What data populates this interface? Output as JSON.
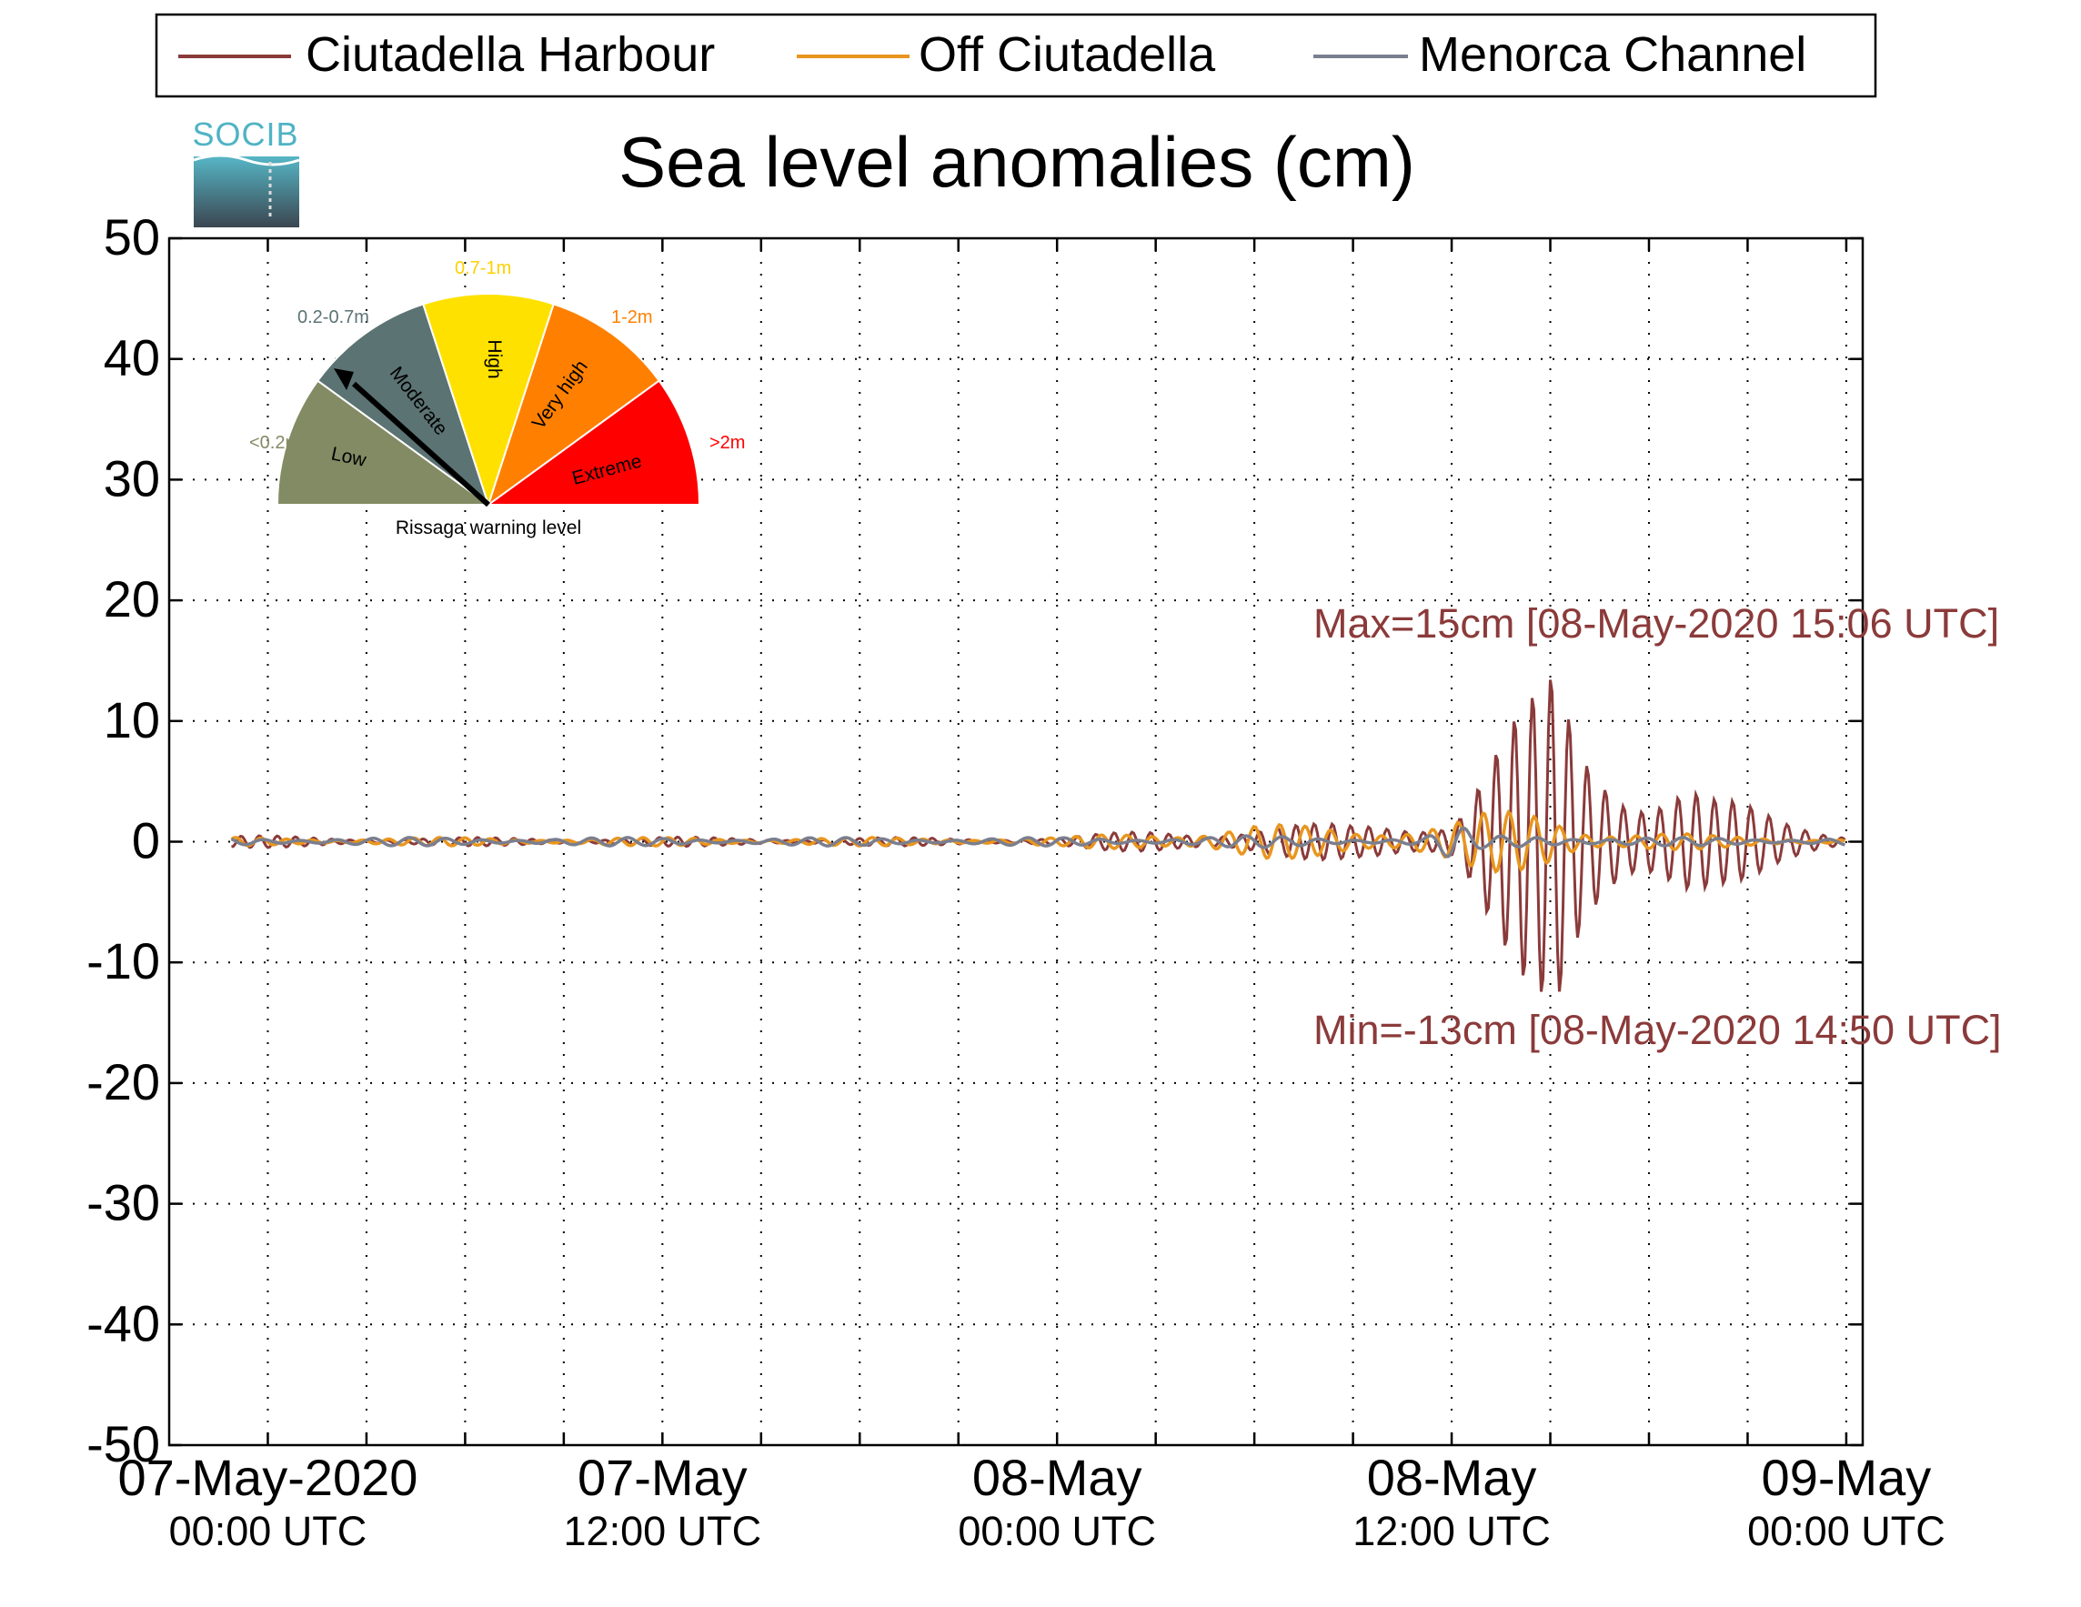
{
  "logo": {
    "text": "SOCIB"
  },
  "legend": {
    "placement": "top",
    "entries": [
      {
        "label": "Ciutadella Harbour",
        "color": "#8b3a3a"
      },
      {
        "label": "Off Ciutadella",
        "color": "#e8961e"
      },
      {
        "label": "Menorca Channel",
        "color": "#7a7f8f"
      }
    ]
  },
  "gauge": {
    "caption": "Rissaga warning level",
    "segments": [
      {
        "name": "Low",
        "range": "<0.2m",
        "color": "#838b64"
      },
      {
        "name": "Moderate",
        "range": "0.2-0.7m",
        "color": "#5c7373"
      },
      {
        "name": "High",
        "range": "0.7-1m",
        "color": "#ffe100"
      },
      {
        "name": "Very high",
        "range": "1-2m",
        "color": "#ff8000"
      },
      {
        "name": "Extreme",
        "range": ">2m",
        "color": "#ff0000"
      }
    ],
    "indicator_level": "Moderate"
  },
  "chart_data": {
    "type": "line",
    "title": "Sea level anomalies (cm)",
    "xlabel": "",
    "ylabel": "",
    "ylim": [
      -50,
      50
    ],
    "yticks": [
      50,
      40,
      30,
      20,
      10,
      0,
      -10,
      -20,
      -30,
      -40,
      -50
    ],
    "xlim": [
      "2020-05-06T21:00",
      "2020-05-09T00:30"
    ],
    "grid": true,
    "xticks": [
      {
        "t": "2020-05-07T00:00",
        "line1": "07-May-2020",
        "line2": "00:00 UTC"
      },
      {
        "t": "2020-05-07T12:00",
        "line1": "07-May",
        "line2": "12:00 UTC"
      },
      {
        "t": "2020-05-08T00:00",
        "line1": "08-May",
        "line2": "00:00 UTC"
      },
      {
        "t": "2020-05-08T12:00",
        "line1": "08-May",
        "line2": "12:00 UTC"
      },
      {
        "t": "2020-05-09T00:00",
        "line1": "09-May",
        "line2": "00:00 UTC"
      }
    ],
    "series": [
      {
        "name": "Ciutadella Harbour",
        "color": "#8b3a3a",
        "x": [
          "2020-05-07T00:00",
          "2020-05-07T06:00",
          "2020-05-07T12:00",
          "2020-05-07T18:00",
          "2020-05-08T00:00",
          "2020-05-08T03:00",
          "2020-05-08T06:00",
          "2020-05-08T09:00",
          "2020-05-08T11:00",
          "2020-05-08T12:00",
          "2020-05-08T13:00",
          "2020-05-08T14:00",
          "2020-05-08T14:50",
          "2020-05-08T15:06",
          "2020-05-08T16:00",
          "2020-05-08T17:00",
          "2020-05-08T18:00",
          "2020-05-08T19:00",
          "2020-05-08T20:00",
          "2020-05-08T22:00",
          "2020-05-09T00:00"
        ],
        "y": [
          -0.5,
          0.3,
          0.4,
          -0.3,
          -0.4,
          -1,
          -1.5,
          -1.5,
          -2.5,
          3,
          -8,
          11,
          -13,
          15,
          -10,
          9,
          -8,
          7,
          -4,
          -2,
          1
        ]
      },
      {
        "name": "Off Ciutadella",
        "color": "#e8961e",
        "x": [
          "2020-05-07T00:00",
          "2020-05-07T06:00",
          "2020-05-07T12:00",
          "2020-05-07T18:00",
          "2020-05-08T00:00",
          "2020-05-08T03:00",
          "2020-05-08T06:00",
          "2020-05-08T09:00",
          "2020-05-08T11:00",
          "2020-05-08T12:00",
          "2020-05-08T13:00",
          "2020-05-08T14:00",
          "2020-05-08T15:00",
          "2020-05-08T16:00",
          "2020-05-08T18:00",
          "2020-05-08T20:00",
          "2020-05-09T00:00"
        ],
        "y": [
          -0.2,
          0.2,
          0.3,
          -0.2,
          -0.3,
          -1,
          -1.5,
          -1.2,
          -2,
          2,
          -2.5,
          2.5,
          -2.5,
          1.5,
          -1,
          0.5,
          0
        ]
      },
      {
        "name": "Menorca Channel",
        "color": "#7a7f8f",
        "x": [
          "2020-05-07T00:00",
          "2020-05-07T06:00",
          "2020-05-07T12:00",
          "2020-05-07T18:00",
          "2020-05-08T00:00",
          "2020-05-08T03:00",
          "2020-05-08T06:00",
          "2020-05-08T09:00",
          "2020-05-08T11:00",
          "2020-05-08T12:00",
          "2020-05-08T13:00",
          "2020-05-08T15:00",
          "2020-05-08T18:00",
          "2020-05-08T21:00",
          "2020-05-09T00:00"
        ],
        "y": [
          0,
          0.1,
          0.2,
          0,
          -0.2,
          -0.4,
          -0.5,
          -0.4,
          -0.2,
          1.5,
          -0.5,
          -0.8,
          0,
          -0.3,
          0
        ]
      }
    ],
    "annotations": [
      {
        "text": "Max=15cm [08-May-2020 15:06 UTC]",
        "color": "#8b3a3a",
        "t": "2020-05-08T15:06",
        "value": 15
      },
      {
        "text": "Min=-13cm [08-May-2020 14:50 UTC]",
        "color": "#8b3a3a",
        "t": "2020-05-08T14:50",
        "value": -13
      }
    ]
  }
}
